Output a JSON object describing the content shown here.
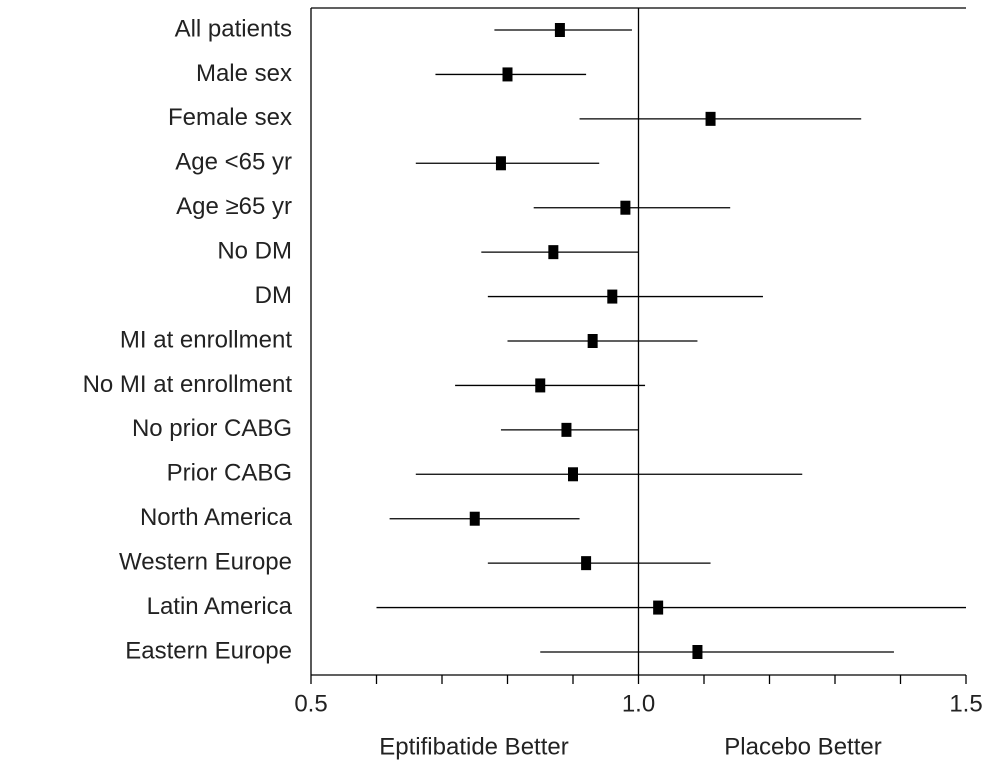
{
  "chart_data": {
    "type": "forest",
    "categories": [
      "All patients",
      "Male sex",
      "Female sex",
      "Age <65 yr",
      "Age ≥65 yr",
      "No DM",
      "DM",
      "MI at enrollment",
      "No MI at enrollment",
      "No prior CABG",
      "Prior CABG",
      "North America",
      "Western Europe",
      "Latin America",
      "Eastern Europe"
    ],
    "values": [
      0.88,
      0.8,
      1.11,
      0.79,
      0.98,
      0.87,
      0.96,
      0.93,
      0.85,
      0.89,
      0.9,
      0.75,
      0.92,
      1.03,
      1.09
    ],
    "lower": [
      0.78,
      0.69,
      0.91,
      0.66,
      0.84,
      0.76,
      0.77,
      0.8,
      0.72,
      0.79,
      0.66,
      0.62,
      0.77,
      0.6,
      0.85
    ],
    "upper": [
      0.99,
      0.92,
      1.34,
      0.94,
      1.14,
      1.0,
      1.19,
      1.09,
      1.01,
      1.0,
      1.25,
      0.91,
      1.11,
      1.5,
      1.39
    ],
    "color": "#000000",
    "xlim": [
      0.5,
      1.5
    ],
    "xticks": [
      0.5,
      {
        "value": 1,
        "label": "1.0"
      },
      1.5
    ],
    "xminorticks": [
      0.6,
      0.7,
      0.8,
      0.9,
      1.1,
      1.2,
      1.3,
      1.4
    ],
    "reference_line": 1,
    "left_label": "Eptifibatide Better",
    "right_label": "Placebo Better"
  }
}
